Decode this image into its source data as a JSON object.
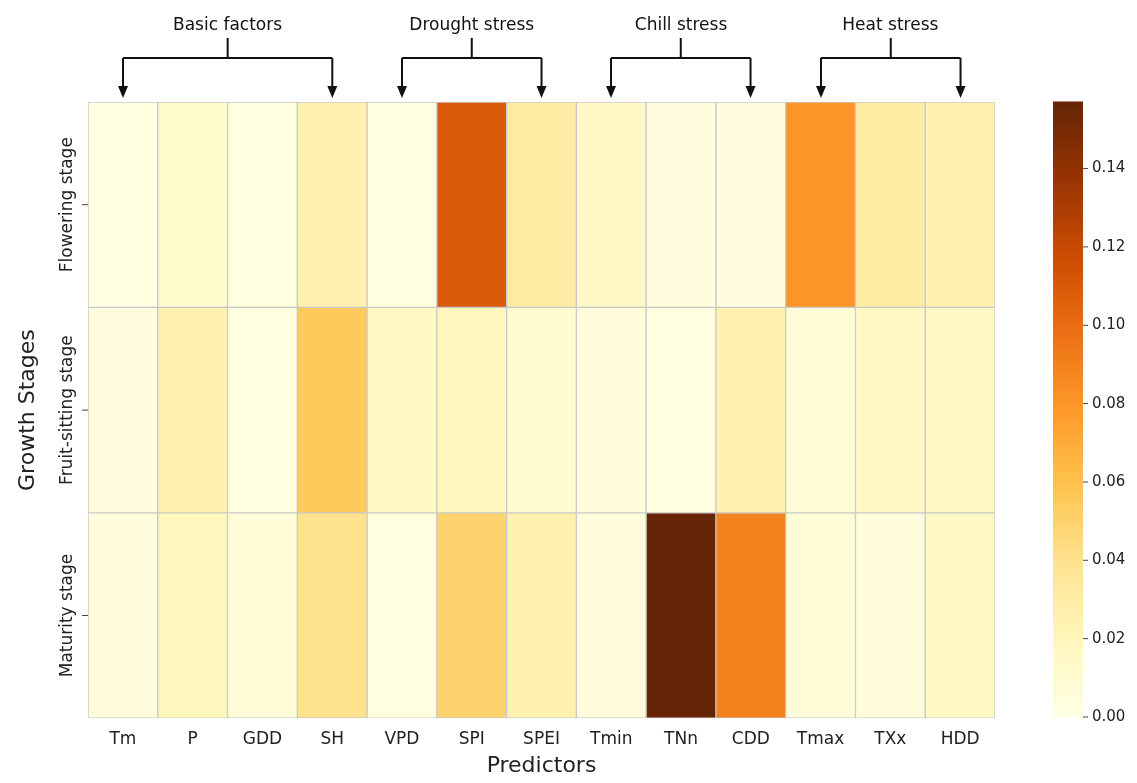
{
  "chart_data": {
    "type": "heatmap",
    "xlabel": "Predictors",
    "ylabel": "Growth Stages",
    "categories": [
      "Tm",
      "P",
      "GDD",
      "SH",
      "VPD",
      "SPI",
      "SPEI",
      "Tmin",
      "TNn",
      "CDD",
      "Tmax",
      "TXx",
      "HDD"
    ],
    "y_categories": [
      "Flowering stage",
      "Fruit-sitting stage",
      "Maturity stage"
    ],
    "cells": [
      [
        0.002,
        0.012,
        0.003,
        0.025,
        0.003,
        0.11,
        0.03,
        0.015,
        0.004,
        0.004,
        0.08,
        0.03,
        0.025
      ],
      [
        0.004,
        0.025,
        0.003,
        0.055,
        0.015,
        0.02,
        0.01,
        0.005,
        0.003,
        0.025,
        0.006,
        0.015,
        0.015
      ],
      [
        0.005,
        0.02,
        0.006,
        0.04,
        0.003,
        0.05,
        0.025,
        0.005,
        0.157,
        0.09,
        0.006,
        0.005,
        0.015
      ]
    ],
    "clim": [
      0,
      0.157
    ],
    "cticks": [
      {
        "value": 0,
        "label": "0.00"
      },
      {
        "value": 0.02,
        "label": "0.02"
      },
      {
        "value": 0.04,
        "label": "0.04"
      },
      {
        "value": 0.06,
        "label": "0.06"
      },
      {
        "value": 0.08,
        "label": "0.08"
      },
      {
        "value": 0.1,
        "label": "0.10"
      },
      {
        "value": 0.12,
        "label": "0.12"
      },
      {
        "value": 0.14,
        "label": "0.14"
      }
    ],
    "annotations": [
      "Basic factors",
      "Drought stress",
      "Chill stress",
      "Heat stress"
    ]
  }
}
